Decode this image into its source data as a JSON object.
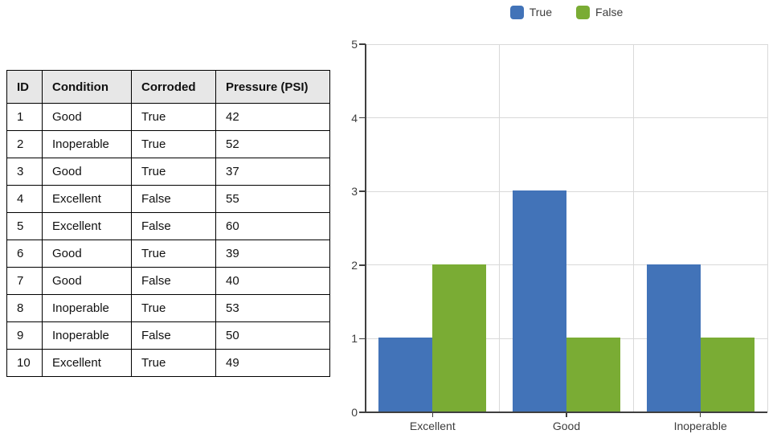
{
  "table": {
    "columns": [
      "ID",
      "Condition",
      "Corroded",
      "Pressure (PSI)"
    ],
    "rows": [
      [
        "1",
        "Good",
        "True",
        "42"
      ],
      [
        "2",
        "Inoperable",
        "True",
        "52"
      ],
      [
        "3",
        "Good",
        "True",
        "37"
      ],
      [
        "4",
        "Excellent",
        "False",
        "55"
      ],
      [
        "5",
        "Excellent",
        "False",
        "60"
      ],
      [
        "6",
        "Good",
        "True",
        "39"
      ],
      [
        "7",
        "Good",
        "False",
        "40"
      ],
      [
        "8",
        "Inoperable",
        "True",
        "53"
      ],
      [
        "9",
        "Inoperable",
        "False",
        "50"
      ],
      [
        "10",
        "Excellent",
        "True",
        "49"
      ]
    ],
    "header_bg": "#e7e7e7",
    "border_color": "#000000"
  },
  "chart_data": {
    "type": "bar",
    "title": "",
    "xlabel": "",
    "ylabel": "",
    "categories": [
      "Excellent",
      "Good",
      "Inoperable"
    ],
    "series": [
      {
        "name": "True",
        "color": "#4273b8",
        "values": [
          1,
          3,
          2
        ]
      },
      {
        "name": "False",
        "color": "#7aac34",
        "values": [
          2,
          1,
          1
        ]
      }
    ],
    "ylim": [
      0,
      5
    ],
    "yticks": [
      0,
      1,
      2,
      3,
      4,
      5
    ],
    "grid": true,
    "legend_position": "top",
    "gridline_color": "#d9d9d9",
    "axis_color": "#3f3f3f",
    "label_color": "#3d3d3d"
  }
}
